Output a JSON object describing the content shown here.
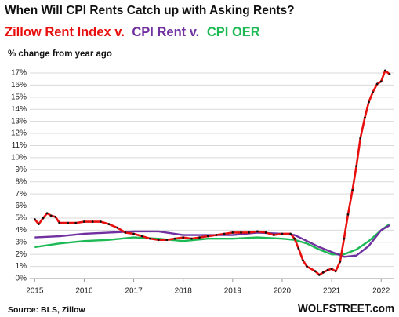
{
  "chart_data": {
    "type": "line",
    "title": "When Will CPI Rents Catch up with Asking Rents?",
    "y_label": "% change from year ago",
    "source": "Source: BLS, Zillow",
    "brand": "WOLFSTREET.com",
    "xlim": [
      2014.9,
      2022.25
    ],
    "xticks": [
      2015,
      2016,
      2017,
      2018,
      2019,
      2020,
      2021,
      2022
    ],
    "ylim": [
      0,
      17
    ],
    "yticks": [
      {
        "value": 0,
        "label": "0%"
      },
      {
        "value": 1,
        "label": "1%"
      },
      {
        "value": 2,
        "label": "2%"
      },
      {
        "value": 3,
        "label": "3%"
      },
      {
        "value": 4,
        "label": "4%"
      },
      {
        "value": 5,
        "label": "5%"
      },
      {
        "value": 6,
        "label": "6%"
      },
      {
        "value": 7,
        "label": "7%"
      },
      {
        "value": 8,
        "label": "8%"
      },
      {
        "value": 9,
        "label": "9%"
      },
      {
        "value": 10,
        "label": "10%"
      },
      {
        "value": 11,
        "label": "11%"
      },
      {
        "value": 12,
        "label": "12%"
      },
      {
        "value": 13,
        "label": "13%"
      },
      {
        "value": 14,
        "label": "14%"
      },
      {
        "value": 15,
        "label": "15%"
      },
      {
        "value": 16,
        "label": "16%"
      },
      {
        "value": 17,
        "label": "17%"
      }
    ],
    "grid": true,
    "series": [
      {
        "name": "Zillow Rent Index v.",
        "color": "#e8100f",
        "markers": true,
        "x": [
          2015.0,
          2015.08,
          2015.17,
          2015.25,
          2015.33,
          2015.42,
          2015.5,
          2015.67,
          2015.83,
          2016.0,
          2016.17,
          2016.33,
          2016.5,
          2016.67,
          2016.83,
          2017.0,
          2017.17,
          2017.33,
          2017.5,
          2017.67,
          2017.83,
          2018.0,
          2018.17,
          2018.33,
          2018.5,
          2018.67,
          2018.83,
          2019.0,
          2019.17,
          2019.33,
          2019.5,
          2019.67,
          2019.83,
          2020.0,
          2020.17,
          2020.25,
          2020.33,
          2020.42,
          2020.5,
          2020.67,
          2020.75,
          2020.83,
          2020.92,
          2021.0,
          2021.08,
          2021.17,
          2021.25,
          2021.33,
          2021.42,
          2021.5,
          2021.58,
          2021.67,
          2021.75,
          2021.83,
          2021.92,
          2022.0,
          2022.08,
          2022.17
        ],
        "values": [
          4.9,
          4.5,
          5.0,
          5.4,
          5.2,
          5.1,
          4.6,
          4.6,
          4.6,
          4.7,
          4.7,
          4.7,
          4.5,
          4.2,
          3.8,
          3.7,
          3.5,
          3.3,
          3.2,
          3.2,
          3.3,
          3.4,
          3.3,
          3.4,
          3.5,
          3.6,
          3.7,
          3.8,
          3.8,
          3.8,
          3.9,
          3.8,
          3.6,
          3.7,
          3.7,
          3.3,
          2.5,
          1.5,
          1.0,
          0.6,
          0.3,
          0.5,
          0.7,
          0.8,
          0.6,
          1.4,
          3.3,
          5.3,
          7.3,
          9.3,
          11.6,
          13.3,
          14.6,
          15.4,
          16.1,
          16.3,
          17.2,
          16.9
        ]
      },
      {
        "name": "CPI Rent v.",
        "color": "#7030a0",
        "markers": false,
        "x": [
          2015.0,
          2015.5,
          2016.0,
          2016.5,
          2017.0,
          2017.5,
          2018.0,
          2018.5,
          2019.0,
          2019.5,
          2020.0,
          2020.25,
          2020.5,
          2020.75,
          2021.0,
          2021.25,
          2021.5,
          2021.75,
          2022.0,
          2022.17
        ],
        "values": [
          3.4,
          3.5,
          3.7,
          3.8,
          3.9,
          3.9,
          3.6,
          3.6,
          3.6,
          3.8,
          3.7,
          3.6,
          3.1,
          2.6,
          2.2,
          1.8,
          1.9,
          2.7,
          4.0,
          4.4
        ]
      },
      {
        "name": "CPI OER",
        "color": "#1db954",
        "markers": false,
        "x": [
          2015.0,
          2015.5,
          2016.0,
          2016.5,
          2017.0,
          2017.5,
          2018.0,
          2018.5,
          2019.0,
          2019.5,
          2020.0,
          2020.25,
          2020.5,
          2020.75,
          2021.0,
          2021.25,
          2021.5,
          2021.75,
          2022.0,
          2022.17
        ],
        "values": [
          2.6,
          2.9,
          3.1,
          3.2,
          3.4,
          3.3,
          3.1,
          3.3,
          3.3,
          3.4,
          3.3,
          3.2,
          2.9,
          2.4,
          2.0,
          2.0,
          2.4,
          3.1,
          4.0,
          4.5
        ]
      }
    ]
  }
}
